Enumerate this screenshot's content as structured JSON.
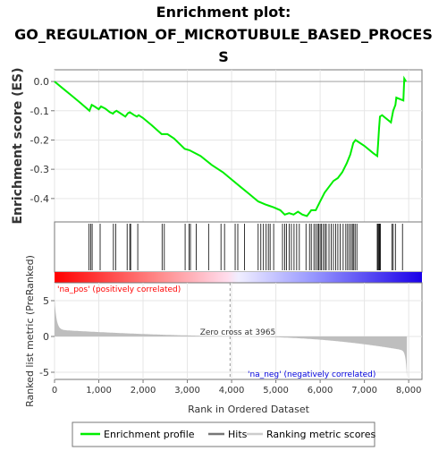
{
  "chart_data": {
    "type": "line",
    "title_lines": [
      "Enrichment plot:",
      "GO_REGULATION_OF_MICROTUBULE_BASED_PROCES",
      "S"
    ],
    "top_panel": {
      "ylabel": "Enrichment score (ES)",
      "ylim": [
        -0.48,
        0.04
      ],
      "yticks": [
        0.0,
        -0.1,
        -0.2,
        -0.3,
        -0.4
      ],
      "ytick_labels": [
        "0.0",
        "-0.1",
        "-0.2",
        "-0.3",
        "-0.4"
      ],
      "line_color": "#00ee00",
      "enrichment_profile": [
        [
          0,
          0.0
        ],
        [
          200,
          -0.025
        ],
        [
          400,
          -0.05
        ],
        [
          600,
          -0.075
        ],
        [
          790,
          -0.1
        ],
        [
          840,
          -0.08
        ],
        [
          900,
          -0.085
        ],
        [
          1000,
          -0.095
        ],
        [
          1050,
          -0.085
        ],
        [
          1150,
          -0.093
        ],
        [
          1250,
          -0.105
        ],
        [
          1320,
          -0.11
        ],
        [
          1350,
          -0.105
        ],
        [
          1400,
          -0.1
        ],
        [
          1500,
          -0.11
        ],
        [
          1600,
          -0.12
        ],
        [
          1660,
          -0.108
        ],
        [
          1700,
          -0.105
        ],
        [
          1800,
          -0.115
        ],
        [
          1860,
          -0.12
        ],
        [
          1900,
          -0.115
        ],
        [
          2000,
          -0.125
        ],
        [
          2200,
          -0.15
        ],
        [
          2420,
          -0.18
        ],
        [
          2550,
          -0.18
        ],
        [
          2700,
          -0.195
        ],
        [
          2940,
          -0.23
        ],
        [
          3050,
          -0.235
        ],
        [
          3300,
          -0.255
        ],
        [
          3550,
          -0.285
        ],
        [
          3800,
          -0.31
        ],
        [
          4000,
          -0.335
        ],
        [
          4200,
          -0.36
        ],
        [
          4400,
          -0.385
        ],
        [
          4600,
          -0.41
        ],
        [
          4760,
          -0.42
        ],
        [
          4850,
          -0.425
        ],
        [
          4950,
          -0.43
        ],
        [
          5100,
          -0.44
        ],
        [
          5200,
          -0.455
        ],
        [
          5300,
          -0.45
        ],
        [
          5400,
          -0.455
        ],
        [
          5500,
          -0.445
        ],
        [
          5600,
          -0.455
        ],
        [
          5700,
          -0.46
        ],
        [
          5800,
          -0.44
        ],
        [
          5900,
          -0.44
        ],
        [
          6000,
          -0.41
        ],
        [
          6100,
          -0.38
        ],
        [
          6200,
          -0.36
        ],
        [
          6300,
          -0.34
        ],
        [
          6400,
          -0.33
        ],
        [
          6500,
          -0.31
        ],
        [
          6600,
          -0.28
        ],
        [
          6680,
          -0.25
        ],
        [
          6750,
          -0.21
        ],
        [
          6800,
          -0.2
        ],
        [
          7000,
          -0.22
        ],
        [
          7200,
          -0.245
        ],
        [
          7290,
          -0.255
        ],
        [
          7310,
          -0.21
        ],
        [
          7330,
          -0.16
        ],
        [
          7350,
          -0.12
        ],
        [
          7400,
          -0.115
        ],
        [
          7600,
          -0.14
        ],
        [
          7650,
          -0.1
        ],
        [
          7700,
          -0.08
        ],
        [
          7720,
          -0.055
        ],
        [
          7800,
          -0.06
        ],
        [
          7880,
          -0.065
        ],
        [
          7900,
          0.01
        ],
        [
          7940,
          0.0
        ]
      ]
    },
    "hits_panel": {
      "hit_positions": [
        780,
        820,
        850,
        1030,
        1330,
        1380,
        1640,
        1700,
        1720,
        1880,
        2430,
        2480,
        2950,
        3040,
        3070,
        3200,
        3480,
        3760,
        3840,
        4080,
        4140,
        4290,
        4600,
        4660,
        4720,
        4780,
        4830,
        4870,
        4950,
        5150,
        5200,
        5240,
        5300,
        5350,
        5410,
        5470,
        5530,
        5680,
        5760,
        5800,
        5860,
        5900,
        5940,
        5970,
        6000,
        6030,
        6070,
        6110,
        6140,
        6200,
        6250,
        6300,
        6350,
        6400,
        6450,
        6520,
        6580,
        6620,
        6660,
        6700,
        6730,
        6760,
        6790,
        6830,
        7290,
        7300,
        7320,
        7340,
        7350,
        7360,
        7620,
        7650,
        7700,
        7860
      ]
    },
    "rank_panel": {
      "ylabel": "Ranked list metric (PreRanked)",
      "ylim": [
        -6,
        7.5
      ],
      "yticks": [
        5,
        0,
        -5
      ],
      "ytick_labels": [
        "5",
        "0",
        "-5"
      ],
      "pos_label": "'na_pos' (positively correlated)",
      "neg_label": "'na_neg' (negatively correlated)",
      "zero_cross_label": "Zero cross at 3965",
      "zero_cross": 3965,
      "fill_color": "#bebebe"
    },
    "xlabel": "Rank in Ordered Dataset",
    "xlim": [
      0,
      8300
    ],
    "xticks": [
      0,
      1000,
      2000,
      3000,
      4000,
      5000,
      6000,
      7000,
      8000
    ],
    "xtick_labels": [
      "0",
      "1,000",
      "2,000",
      "3,000",
      "4,000",
      "5,000",
      "6,000",
      "7,000",
      "8,000"
    ],
    "n_genes": 7960,
    "legend": {
      "placement": "bottom",
      "items": [
        {
          "label": "Enrichment profile",
          "color": "#00ee00"
        },
        {
          "label": "Hits",
          "color": "#777777"
        },
        {
          "label": "Ranking metric scores",
          "color": "#cccccc"
        }
      ]
    }
  }
}
